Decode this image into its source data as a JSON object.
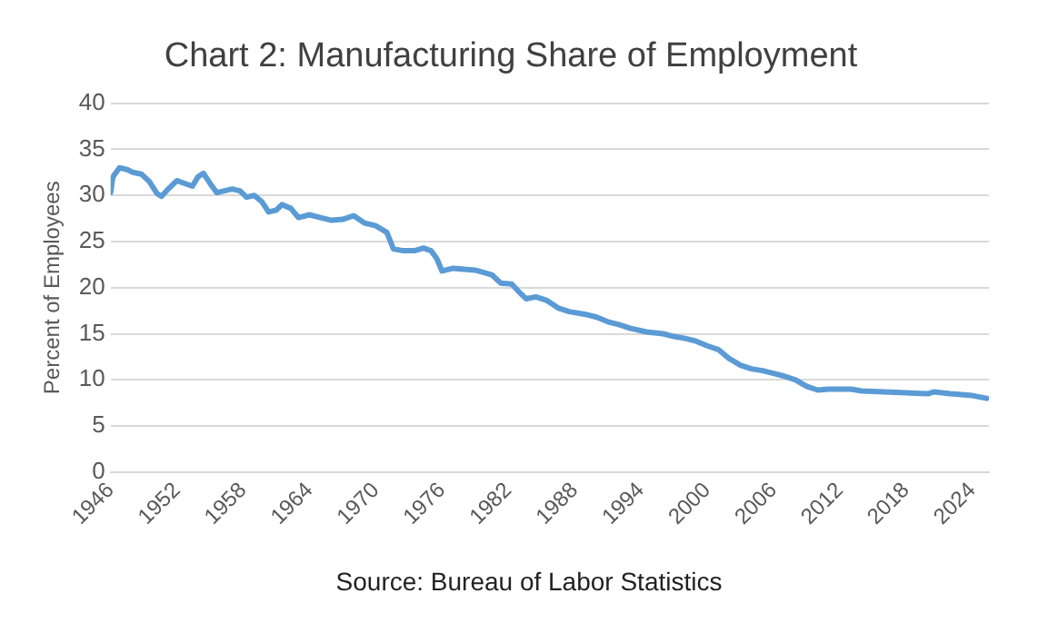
{
  "chart_data": {
    "type": "line",
    "title": "Chart 2: Manufacturing Share of Employment",
    "ylabel": "Percent of Employees",
    "annotations": [
      "Source: Bureau of Labor Statistics"
    ],
    "xlim": [
      1946,
      2025.5
    ],
    "xticks": [
      1946,
      1952,
      1958,
      1964,
      1970,
      1976,
      1982,
      1988,
      1994,
      2000,
      2006,
      2012,
      2018,
      2024
    ],
    "ylim": [
      0,
      40
    ],
    "yticks": [
      0,
      5,
      10,
      15,
      20,
      25,
      30,
      35,
      40
    ],
    "grid": "y",
    "legend": false,
    "marker": "none",
    "line_style": "solid",
    "series": [
      {
        "color": "#5b9bd5",
        "x": [
          1946,
          1946.2,
          1946.8,
          1947.5,
          1948,
          1948.8,
          1949.5,
          1950.2,
          1950.6,
          1951.3,
          1952,
          1952.7,
          1953.4,
          1953.9,
          1954.4,
          1955,
          1955.6,
          1956.3,
          1957,
          1957.7,
          1958.3,
          1959,
          1959.7,
          1960.3,
          1961,
          1961.5,
          1962.3,
          1963,
          1964,
          1965,
          1966,
          1967,
          1968,
          1969,
          1970,
          1971,
          1971.6,
          1972.5,
          1973.5,
          1974.3,
          1975,
          1975.5,
          1976,
          1977,
          1978,
          1979,
          1980.5,
          1981.3,
          1982.3,
          1983,
          1983.6,
          1984.5,
          1985.5,
          1986.5,
          1987.5,
          1989,
          1990,
          1991,
          1992,
          1993,
          1994.5,
          1996,
          1997,
          1998,
          1999,
          2000,
          2001,
          2002,
          2003,
          2004,
          2005,
          2006,
          2007,
          2008,
          2009,
          2010,
          2011,
          2013,
          2014,
          2016,
          2018,
          2020,
          2020.5,
          2022,
          2024,
          2025.3
        ],
        "values": [
          30.3,
          32.0,
          33.0,
          32.8,
          32.5,
          32.3,
          31.5,
          30.2,
          29.9,
          30.8,
          31.6,
          31.3,
          31.0,
          32.0,
          32.4,
          31.3,
          30.3,
          30.5,
          30.7,
          30.5,
          29.8,
          30.0,
          29.3,
          28.2,
          28.4,
          29.0,
          28.6,
          27.6,
          27.9,
          27.6,
          27.3,
          27.4,
          27.8,
          27.0,
          26.7,
          26.0,
          24.2,
          24.0,
          24.0,
          24.3,
          24.0,
          23.2,
          21.8,
          22.1,
          22.0,
          21.9,
          21.4,
          20.5,
          20.4,
          19.5,
          18.8,
          19.0,
          18.6,
          17.8,
          17.4,
          17.1,
          16.8,
          16.3,
          16.0,
          15.6,
          15.2,
          15.0,
          14.7,
          14.5,
          14.2,
          13.7,
          13.3,
          12.3,
          11.6,
          11.2,
          11.0,
          10.7,
          10.4,
          10.0,
          9.3,
          8.9,
          9.0,
          9.0,
          8.8,
          8.7,
          8.6,
          8.5,
          8.7,
          8.5,
          8.3,
          8.0
        ]
      }
    ]
  }
}
